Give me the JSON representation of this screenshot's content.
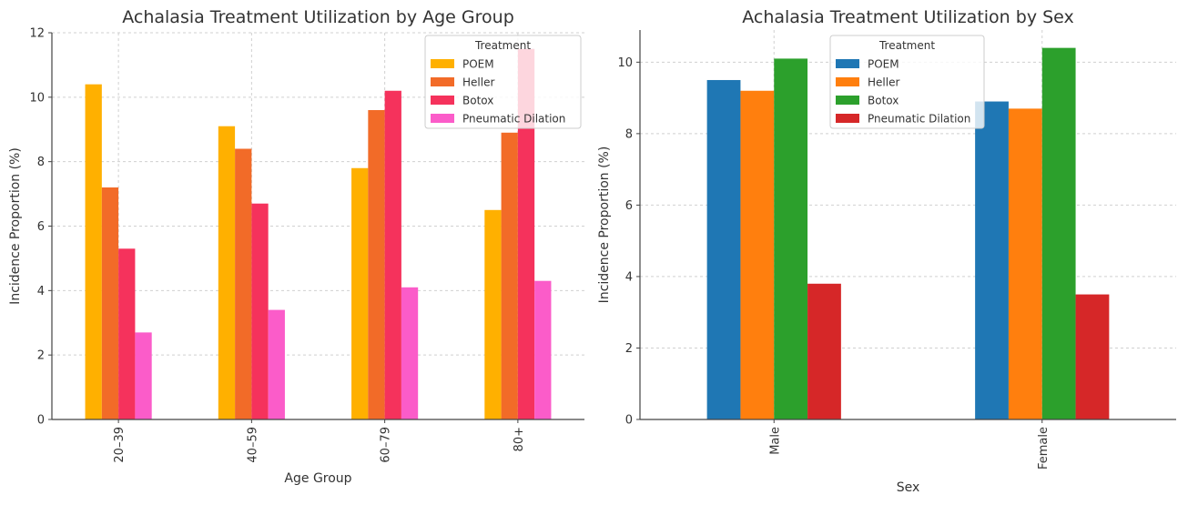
{
  "chart_data": [
    {
      "type": "bar",
      "title": "Achalasia Treatment Utilization by Age Group",
      "xlabel": "Age Group",
      "ylabel": "Incidence Proportion (%)",
      "categories": [
        "20–39",
        "40–59",
        "60–79",
        "80+"
      ],
      "ylim": [
        0,
        12
      ],
      "yticks": [
        0,
        2,
        4,
        6,
        8,
        10,
        12
      ],
      "grid": true,
      "legend": {
        "title": "Treatment",
        "placement": "top-right"
      },
      "series": [
        {
          "name": "POEM",
          "color": "#FFB000",
          "values": [
            10.4,
            9.1,
            7.8,
            6.5
          ]
        },
        {
          "name": "Heller",
          "color": "#F26B28",
          "values": [
            7.2,
            8.4,
            9.6,
            8.9
          ]
        },
        {
          "name": "Botox",
          "color": "#F5325C",
          "values": [
            5.3,
            6.7,
            10.2,
            11.5
          ]
        },
        {
          "name": "Pneumatic Dilation",
          "color": "#FB5CC9",
          "values": [
            2.7,
            3.4,
            4.1,
            4.3
          ]
        }
      ]
    },
    {
      "type": "bar",
      "title": "Achalasia Treatment Utilization by Sex",
      "xlabel": "Sex",
      "ylabel": "Incidence Proportion (%)",
      "categories": [
        "Male",
        "Female"
      ],
      "ylim": [
        0,
        10.9
      ],
      "yticks": [
        0,
        2,
        4,
        6,
        8,
        10
      ],
      "grid": true,
      "legend": {
        "title": "Treatment",
        "placement": "top-center"
      },
      "series": [
        {
          "name": "POEM",
          "color": "#1F77B4",
          "values": [
            9.5,
            8.9
          ]
        },
        {
          "name": "Heller",
          "color": "#FF7F0E",
          "values": [
            9.2,
            8.7
          ]
        },
        {
          "name": "Botox",
          "color": "#2CA02C",
          "values": [
            10.1,
            10.4
          ]
        },
        {
          "name": "Pneumatic Dilation",
          "color": "#D62728",
          "values": [
            3.8,
            3.5
          ]
        }
      ]
    }
  ]
}
